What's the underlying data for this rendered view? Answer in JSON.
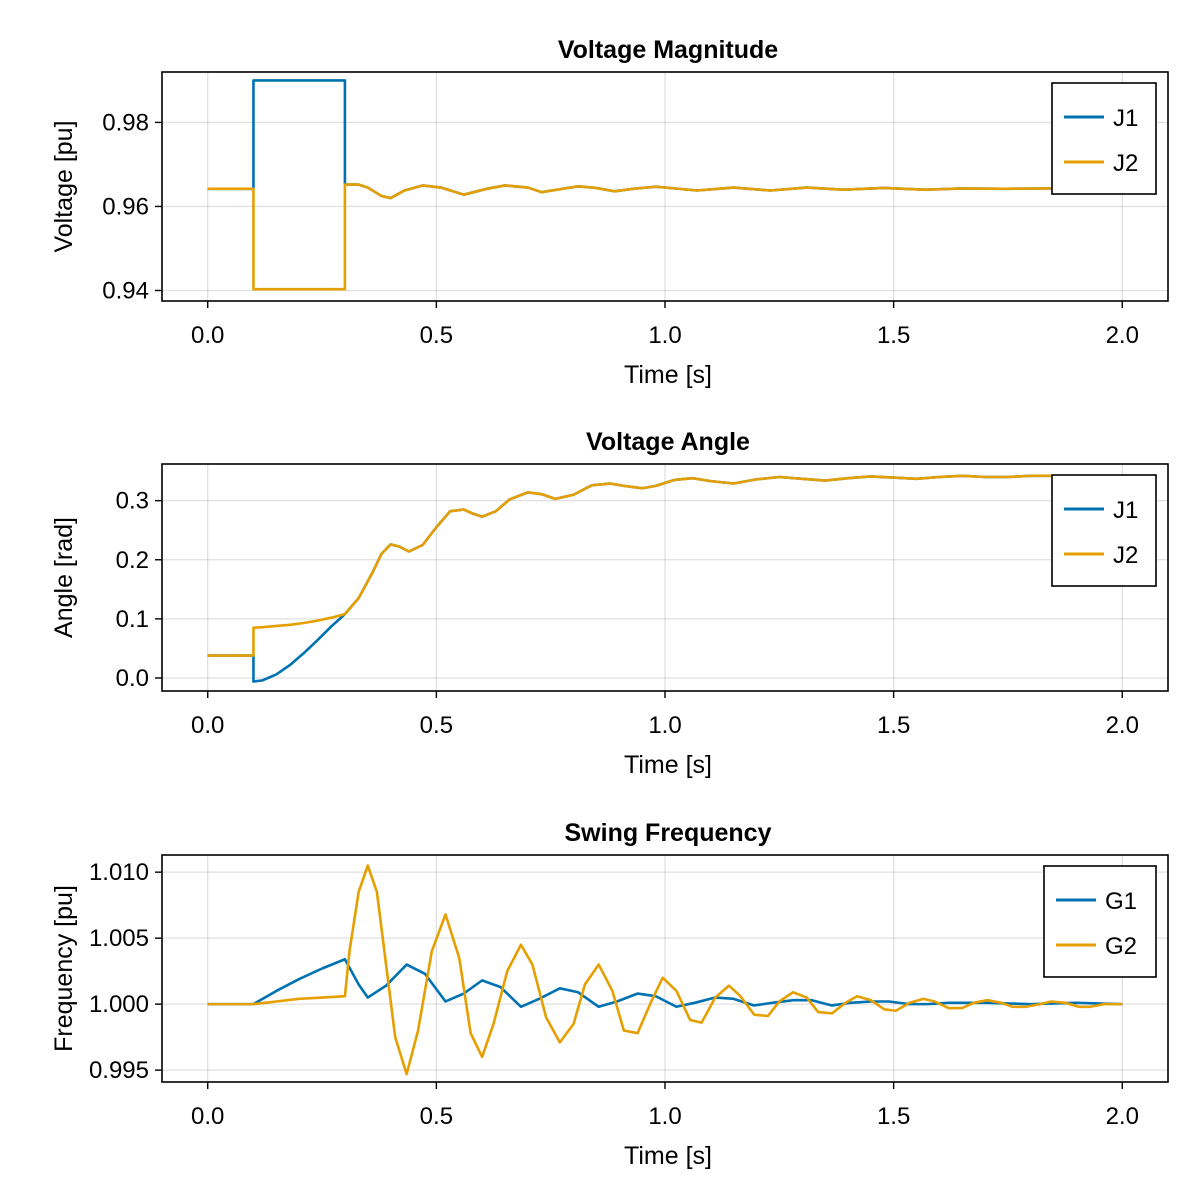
{
  "chart_data": [
    {
      "id": "voltage-magnitude",
      "type": "line",
      "title": "Voltage Magnitude",
      "xlabel": "Time [s]",
      "ylabel": "Voltage [pu]",
      "xlim": [
        -0.1,
        2.1
      ],
      "ylim": [
        0.9375,
        0.992
      ],
      "xticks": [
        0.0,
        0.5,
        1.0,
        1.5,
        2.0
      ],
      "xtick_labels": [
        "0.0",
        "0.5",
        "1.0",
        "1.5",
        "2.0"
      ],
      "yticks": [
        0.94,
        0.96,
        0.98
      ],
      "ytick_labels": [
        "0.94",
        "0.96",
        "0.98"
      ],
      "grid": true,
      "legend_position": "top-right",
      "series": [
        {
          "name": "J1",
          "color": "#0072b2",
          "x": [
            0.0,
            0.1,
            0.1,
            0.3,
            0.3,
            0.33,
            0.35,
            0.38,
            0.4,
            0.43,
            0.47,
            0.51,
            0.56,
            0.61,
            0.65,
            0.7,
            0.73,
            0.77,
            0.81,
            0.85,
            0.89,
            0.93,
            0.98,
            1.02,
            1.07,
            1.15,
            1.23,
            1.31,
            1.39,
            1.48,
            1.57,
            1.65,
            1.74,
            1.83,
            2.0
          ],
          "values": [
            0.9642,
            0.9642,
            0.99,
            0.99,
            0.9652,
            0.9652,
            0.9645,
            0.9625,
            0.962,
            0.9638,
            0.965,
            0.9645,
            0.9628,
            0.9642,
            0.965,
            0.9645,
            0.9634,
            0.9641,
            0.9648,
            0.9644,
            0.9636,
            0.9642,
            0.9647,
            0.9643,
            0.9638,
            0.9645,
            0.9638,
            0.9645,
            0.964,
            0.9644,
            0.964,
            0.9643,
            0.9642,
            0.9643,
            0.9642
          ]
        },
        {
          "name": "J2",
          "color": "#e69f00",
          "x": [
            0.0,
            0.1,
            0.1,
            0.3,
            0.3,
            0.33,
            0.35,
            0.38,
            0.4,
            0.43,
            0.47,
            0.51,
            0.56,
            0.61,
            0.65,
            0.7,
            0.73,
            0.77,
            0.81,
            0.85,
            0.89,
            0.93,
            0.98,
            1.02,
            1.07,
            1.15,
            1.23,
            1.31,
            1.39,
            1.48,
            1.57,
            1.65,
            1.74,
            1.83,
            2.0
          ],
          "values": [
            0.9642,
            0.9642,
            0.9403,
            0.9403,
            0.9652,
            0.9652,
            0.9645,
            0.9625,
            0.962,
            0.9638,
            0.965,
            0.9645,
            0.9628,
            0.9642,
            0.965,
            0.9645,
            0.9634,
            0.9641,
            0.9648,
            0.9644,
            0.9636,
            0.9642,
            0.9647,
            0.9643,
            0.9638,
            0.9645,
            0.9638,
            0.9645,
            0.964,
            0.9644,
            0.964,
            0.9643,
            0.9642,
            0.9643,
            0.9642
          ]
        }
      ]
    },
    {
      "id": "voltage-angle",
      "type": "line",
      "title": "Voltage Angle",
      "xlabel": "Time [s]",
      "ylabel": "Angle [rad]",
      "xlim": [
        -0.1,
        2.1
      ],
      "ylim": [
        -0.022,
        0.362
      ],
      "xticks": [
        0.0,
        0.5,
        1.0,
        1.5,
        2.0
      ],
      "xtick_labels": [
        "0.0",
        "0.5",
        "1.0",
        "1.5",
        "2.0"
      ],
      "yticks": [
        0.0,
        0.1,
        0.2,
        0.3
      ],
      "ytick_labels": [
        "0.0",
        "0.1",
        "0.2",
        "0.3"
      ],
      "grid": true,
      "legend_position": "top-right",
      "series": [
        {
          "name": "J1",
          "color": "#0072b2",
          "x": [
            0.0,
            0.1,
            0.1,
            0.12,
            0.15,
            0.18,
            0.21,
            0.24,
            0.27,
            0.3,
            0.33,
            0.36,
            0.38,
            0.4,
            0.42,
            0.44,
            0.47,
            0.5,
            0.53,
            0.56,
            0.58,
            0.6,
            0.63,
            0.66,
            0.7,
            0.73,
            0.76,
            0.8,
            0.84,
            0.88,
            0.91,
            0.95,
            0.98,
            1.02,
            1.06,
            1.1,
            1.15,
            1.2,
            1.25,
            1.3,
            1.35,
            1.4,
            1.45,
            1.5,
            1.55,
            1.6,
            1.65,
            1.7,
            1.75,
            1.8,
            1.85,
            1.9,
            2.0
          ],
          "values": [
            0.038,
            0.038,
            -0.006,
            -0.004,
            0.006,
            0.022,
            0.042,
            0.064,
            0.087,
            0.108,
            0.135,
            0.178,
            0.21,
            0.226,
            0.222,
            0.214,
            0.225,
            0.255,
            0.282,
            0.285,
            0.278,
            0.273,
            0.282,
            0.302,
            0.314,
            0.311,
            0.303,
            0.31,
            0.326,
            0.329,
            0.325,
            0.321,
            0.325,
            0.335,
            0.338,
            0.333,
            0.329,
            0.336,
            0.34,
            0.337,
            0.334,
            0.338,
            0.341,
            0.339,
            0.337,
            0.34,
            0.342,
            0.34,
            0.34,
            0.342,
            0.342,
            0.342,
            0.342
          ]
        },
        {
          "name": "J2",
          "color": "#e69f00",
          "x": [
            0.0,
            0.1,
            0.1,
            0.12,
            0.15,
            0.18,
            0.21,
            0.24,
            0.27,
            0.3,
            0.33,
            0.36,
            0.38,
            0.4,
            0.42,
            0.44,
            0.47,
            0.5,
            0.53,
            0.56,
            0.58,
            0.6,
            0.63,
            0.66,
            0.7,
            0.73,
            0.76,
            0.8,
            0.84,
            0.88,
            0.91,
            0.95,
            0.98,
            1.02,
            1.06,
            1.1,
            1.15,
            1.2,
            1.25,
            1.3,
            1.35,
            1.4,
            1.45,
            1.5,
            1.55,
            1.6,
            1.65,
            1.7,
            1.75,
            1.8,
            1.85,
            1.9,
            2.0
          ],
          "values": [
            0.038,
            0.038,
            0.085,
            0.086,
            0.088,
            0.09,
            0.093,
            0.097,
            0.102,
            0.108,
            0.135,
            0.178,
            0.21,
            0.226,
            0.222,
            0.214,
            0.225,
            0.255,
            0.282,
            0.285,
            0.278,
            0.273,
            0.282,
            0.302,
            0.314,
            0.311,
            0.303,
            0.31,
            0.326,
            0.329,
            0.325,
            0.321,
            0.325,
            0.335,
            0.338,
            0.333,
            0.329,
            0.336,
            0.34,
            0.337,
            0.334,
            0.338,
            0.341,
            0.339,
            0.337,
            0.34,
            0.342,
            0.34,
            0.34,
            0.342,
            0.342,
            0.342,
            0.342
          ]
        }
      ]
    },
    {
      "id": "swing-frequency",
      "type": "line",
      "title": "Swing Frequency",
      "xlabel": "Time [s]",
      "ylabel": "Frequency [pu]",
      "xlim": [
        -0.1,
        2.1
      ],
      "ylim": [
        0.9941,
        1.0113
      ],
      "xticks": [
        0.0,
        0.5,
        1.0,
        1.5,
        2.0
      ],
      "xtick_labels": [
        "0.0",
        "0.5",
        "1.0",
        "1.5",
        "2.0"
      ],
      "yticks": [
        0.995,
        1.0,
        1.005,
        1.01
      ],
      "ytick_labels": [
        "0.995",
        "1.000",
        "1.005",
        "1.010"
      ],
      "grid": true,
      "legend_position": "top-right",
      "series": [
        {
          "name": "G1",
          "color": "#0072b2",
          "x": [
            0.0,
            0.1,
            0.15,
            0.2,
            0.25,
            0.3,
            0.33,
            0.35,
            0.39,
            0.435,
            0.475,
            0.52,
            0.56,
            0.6,
            0.64,
            0.685,
            0.725,
            0.77,
            0.81,
            0.855,
            0.895,
            0.94,
            0.98,
            1.025,
            1.065,
            1.11,
            1.15,
            1.195,
            1.235,
            1.28,
            1.32,
            1.365,
            1.405,
            1.45,
            1.49,
            1.535,
            1.575,
            1.62,
            1.7,
            1.8,
            1.9,
            2.0
          ],
          "values": [
            1.0,
            1.0,
            1.001,
            1.0019,
            1.0027,
            1.0034,
            1.0015,
            1.0005,
            1.0014,
            1.003,
            1.0023,
            1.0002,
            1.0008,
            1.0018,
            1.0013,
            0.9998,
            1.0004,
            1.0012,
            1.0009,
            0.9998,
            1.0002,
            1.0008,
            1.0006,
            0.9998,
            1.0001,
            1.0005,
            1.0004,
            0.9999,
            1.0001,
            1.0003,
            1.0003,
            0.9999,
            1.0001,
            1.0002,
            1.0002,
            1.0,
            1.0,
            1.0001,
            1.0001,
            1.0,
            1.0001,
            1.0
          ]
        },
        {
          "name": "G2",
          "color": "#e69f00",
          "x": [
            0.0,
            0.1,
            0.15,
            0.2,
            0.25,
            0.3,
            0.31,
            0.33,
            0.35,
            0.37,
            0.39,
            0.41,
            0.435,
            0.46,
            0.49,
            0.52,
            0.55,
            0.575,
            0.6,
            0.625,
            0.655,
            0.685,
            0.71,
            0.74,
            0.77,
            0.8,
            0.825,
            0.855,
            0.885,
            0.91,
            0.94,
            0.97,
            0.995,
            1.025,
            1.055,
            1.08,
            1.11,
            1.14,
            1.165,
            1.195,
            1.225,
            1.25,
            1.28,
            1.31,
            1.335,
            1.365,
            1.395,
            1.42,
            1.45,
            1.48,
            1.505,
            1.535,
            1.565,
            1.59,
            1.62,
            1.65,
            1.675,
            1.705,
            1.735,
            1.76,
            1.79,
            1.82,
            1.845,
            1.875,
            1.905,
            1.93,
            1.96,
            2.0
          ],
          "values": [
            1.0,
            1.0,
            1.0002,
            1.0004,
            1.0005,
            1.0006,
            1.004,
            1.0085,
            1.0105,
            1.0085,
            1.003,
            0.9975,
            0.9947,
            0.998,
            1.004,
            1.0068,
            1.0035,
            0.9978,
            0.996,
            0.9985,
            1.0025,
            1.0045,
            1.003,
            0.999,
            0.9971,
            0.9985,
            1.0015,
            1.003,
            1.001,
            0.998,
            0.9978,
            1.0002,
            1.002,
            1.001,
            0.9988,
            0.9986,
            1.0005,
            1.0014,
            1.0006,
            0.9992,
            0.9991,
            1.0002,
            1.0009,
            1.0005,
            0.9994,
            0.9993,
            1.0001,
            1.0006,
            1.0003,
            0.9996,
            0.9995,
            1.0001,
            1.0004,
            1.0002,
            0.9997,
            0.9997,
            1.0001,
            1.0003,
            1.0001,
            0.9998,
            0.9998,
            1.0,
            1.0002,
            1.0001,
            0.9998,
            0.9998,
            1.0,
            1.0
          ]
        }
      ]
    }
  ]
}
